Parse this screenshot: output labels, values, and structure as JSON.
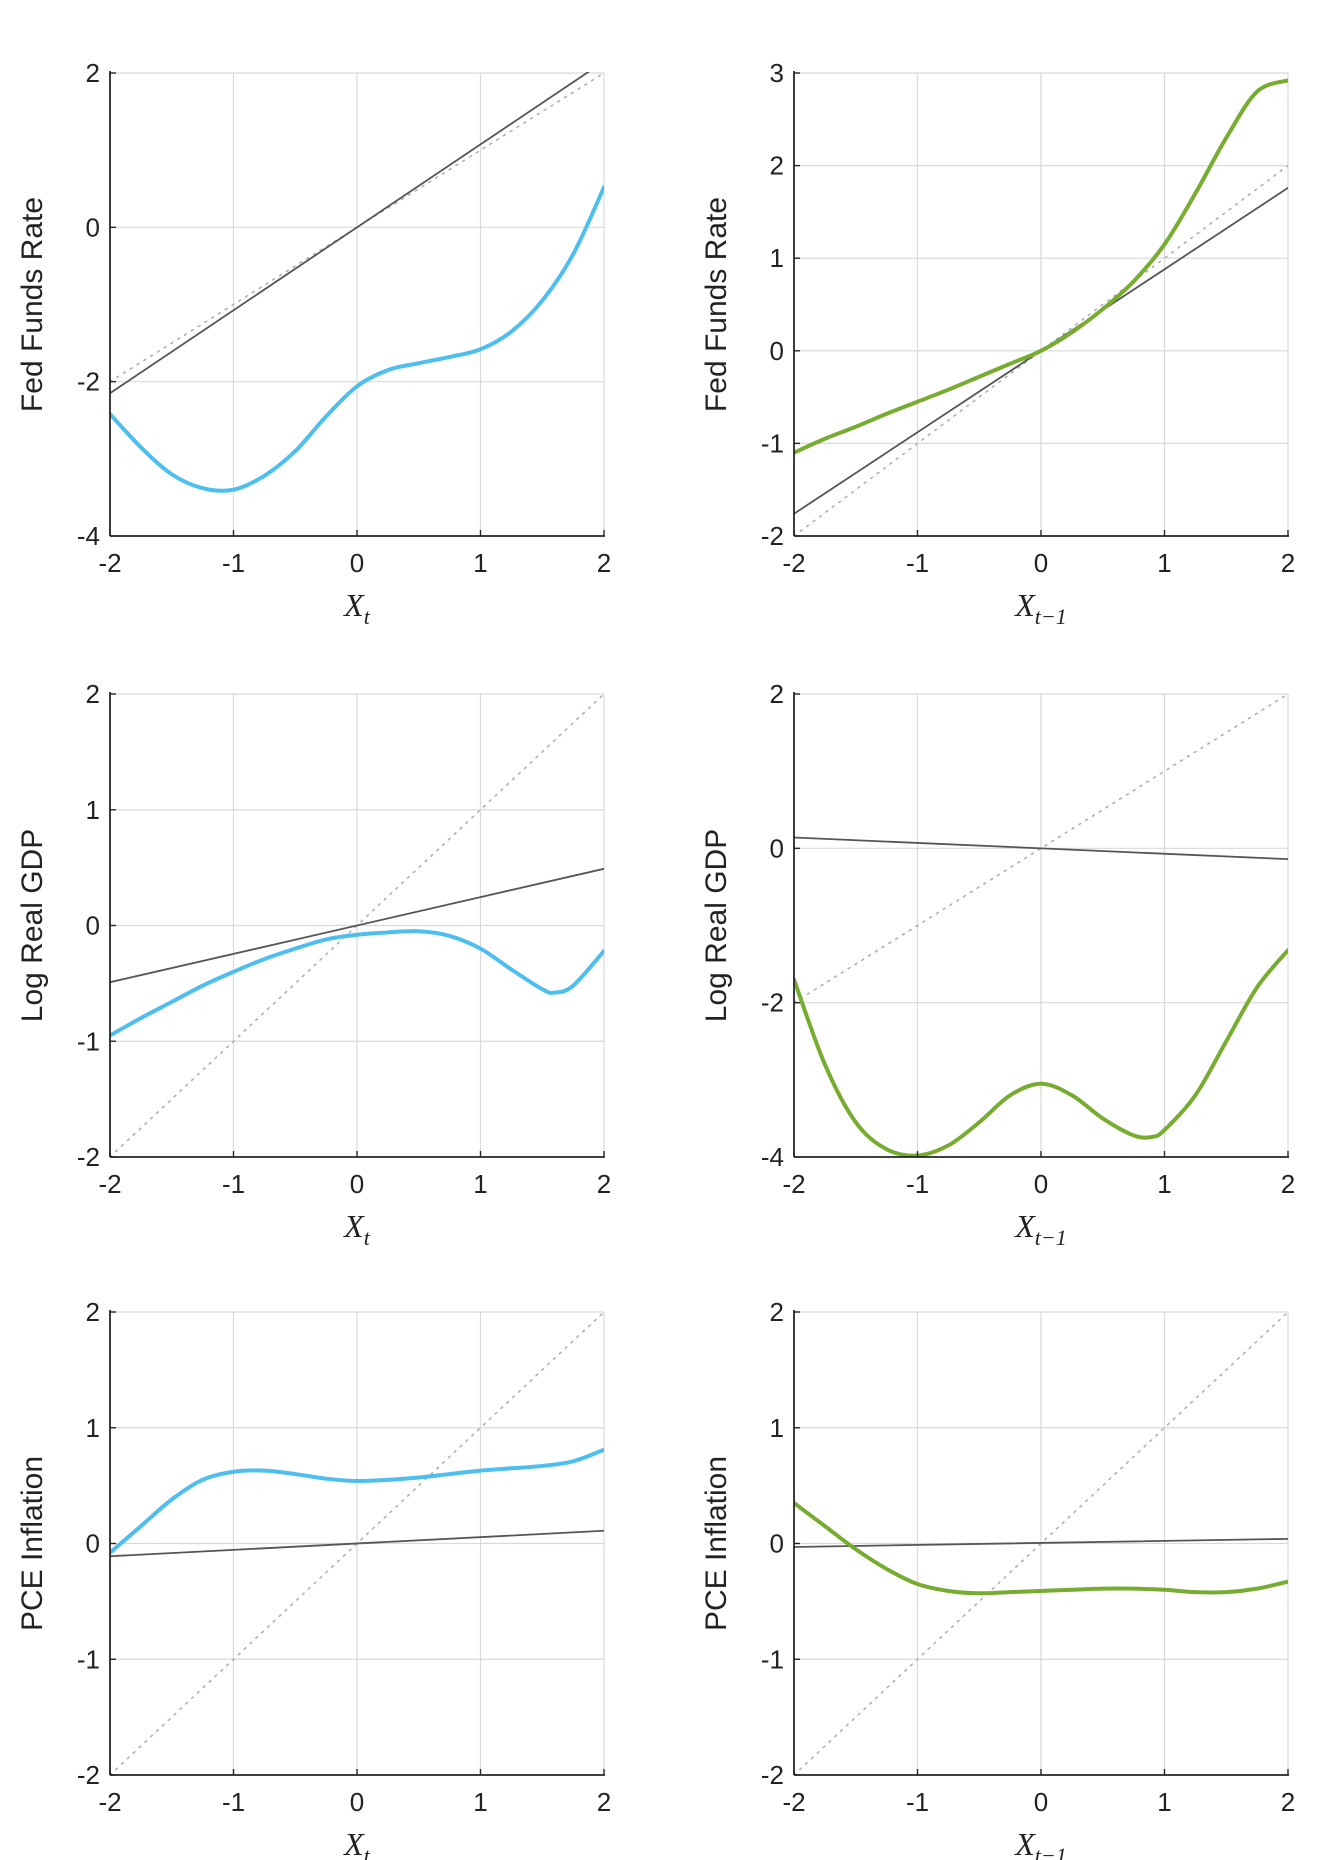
{
  "colors": {
    "blue": "#4DBEEE",
    "green": "#77AC30",
    "linear": "#555555",
    "identity": "#b0b0b0",
    "grid": "#d9d9d9",
    "axis": "#262626"
  },
  "chart_data": [
    {
      "type": "line",
      "panel": "row1-col1",
      "ylabel": "Fed Funds Rate",
      "xlabel": {
        "base": "X",
        "sub": "t"
      },
      "xlim": [
        -2,
        2
      ],
      "ylim": [
        -4,
        2
      ],
      "xticks": [
        -2,
        -1,
        0,
        1,
        2
      ],
      "yticks": [
        -4,
        -2,
        0,
        2
      ],
      "series": [
        {
          "name": "nonlinear",
          "color": "blue",
          "width": 4,
          "x": [
            -2,
            -1.75,
            -1.5,
            -1.25,
            -1,
            -0.75,
            -0.5,
            -0.25,
            0,
            0.25,
            0.5,
            0.75,
            1,
            1.25,
            1.5,
            1.75,
            2
          ],
          "y": [
            -2.42,
            -2.85,
            -3.2,
            -3.38,
            -3.4,
            -3.22,
            -2.9,
            -2.45,
            -2.06,
            -1.85,
            -1.76,
            -1.68,
            -1.58,
            -1.35,
            -0.95,
            -0.35,
            0.52
          ]
        },
        {
          "name": "linear",
          "color": "linear",
          "width": 1.8,
          "x": [
            -2,
            2
          ],
          "y": [
            -2.15,
            2.15
          ]
        },
        {
          "name": "identity",
          "color": "identity",
          "width": 1.6,
          "dash": true,
          "x": [
            -2,
            2
          ],
          "y": [
            -2,
            2
          ]
        }
      ]
    },
    {
      "type": "line",
      "panel": "row1-col2",
      "ylabel": "Fed Funds Rate",
      "xlabel": {
        "base": "X",
        "sub": "t−1"
      },
      "xlim": [
        -2,
        2
      ],
      "ylim": [
        -2,
        3
      ],
      "xticks": [
        -2,
        -1,
        0,
        1,
        2
      ],
      "yticks": [
        -2,
        -1,
        0,
        1,
        2,
        3
      ],
      "series": [
        {
          "name": "nonlinear",
          "color": "green",
          "width": 4,
          "x": [
            -2,
            -1.75,
            -1.5,
            -1.25,
            -1,
            -0.75,
            -0.5,
            -0.25,
            0,
            0.25,
            0.5,
            0.75,
            1,
            1.25,
            1.5,
            1.75,
            2
          ],
          "y": [
            -1.1,
            -0.95,
            -0.82,
            -0.68,
            -0.55,
            -0.42,
            -0.28,
            -0.14,
            0,
            0.2,
            0.45,
            0.75,
            1.15,
            1.7,
            2.3,
            2.8,
            2.92
          ]
        },
        {
          "name": "linear",
          "color": "linear",
          "width": 1.8,
          "x": [
            -2,
            2
          ],
          "y": [
            -1.76,
            1.76
          ]
        },
        {
          "name": "identity",
          "color": "identity",
          "width": 1.6,
          "dash": true,
          "x": [
            -2,
            2
          ],
          "y": [
            -2,
            2
          ]
        }
      ]
    },
    {
      "type": "line",
      "panel": "row2-col1",
      "ylabel": "Log Real GDP",
      "xlabel": {
        "base": "X",
        "sub": "t"
      },
      "xlim": [
        -2,
        2
      ],
      "ylim": [
        -2,
        2
      ],
      "xticks": [
        -2,
        -1,
        0,
        1,
        2
      ],
      "yticks": [
        -2,
        -1,
        0,
        1,
        2
      ],
      "series": [
        {
          "name": "nonlinear",
          "color": "blue",
          "width": 4,
          "x": [
            -2,
            -1.75,
            -1.5,
            -1.25,
            -1,
            -0.75,
            -0.5,
            -0.25,
            0,
            0.25,
            0.5,
            0.75,
            1,
            1.25,
            1.5,
            1.6,
            1.75,
            2
          ],
          "y": [
            -0.95,
            -0.8,
            -0.66,
            -0.52,
            -0.4,
            -0.29,
            -0.2,
            -0.12,
            -0.08,
            -0.06,
            -0.05,
            -0.09,
            -0.2,
            -0.38,
            -0.55,
            -0.58,
            -0.52,
            -0.22
          ]
        },
        {
          "name": "linear",
          "color": "linear",
          "width": 1.8,
          "x": [
            -2,
            2
          ],
          "y": [
            -0.49,
            0.49
          ]
        },
        {
          "name": "identity",
          "color": "identity",
          "width": 1.6,
          "dash": true,
          "x": [
            -2,
            2
          ],
          "y": [
            -2,
            2
          ]
        }
      ]
    },
    {
      "type": "line",
      "panel": "row2-col2",
      "ylabel": "Log Real GDP",
      "xlabel": {
        "base": "X",
        "sub": "t−1"
      },
      "xlim": [
        -2,
        2
      ],
      "ylim": [
        -4,
        2
      ],
      "xticks": [
        -2,
        -1,
        0,
        1,
        2
      ],
      "yticks": [
        -4,
        -2,
        0,
        2
      ],
      "series": [
        {
          "name": "nonlinear",
          "color": "green",
          "width": 4,
          "x": [
            -2,
            -1.75,
            -1.5,
            -1.25,
            -1,
            -0.75,
            -0.5,
            -0.25,
            0,
            0.25,
            0.5,
            0.75,
            0.9,
            1,
            1.25,
            1.5,
            1.75,
            2
          ],
          "y": [
            -1.7,
            -2.8,
            -3.55,
            -3.9,
            -3.98,
            -3.85,
            -3.55,
            -3.2,
            -3.05,
            -3.2,
            -3.5,
            -3.72,
            -3.74,
            -3.65,
            -3.2,
            -2.5,
            -1.8,
            -1.32
          ]
        },
        {
          "name": "linear",
          "color": "linear",
          "width": 1.8,
          "x": [
            -2,
            2
          ],
          "y": [
            0.14,
            -0.14
          ]
        },
        {
          "name": "identity",
          "color": "identity",
          "width": 1.6,
          "dash": true,
          "x": [
            -2,
            2
          ],
          "y": [
            -2,
            2
          ]
        }
      ]
    },
    {
      "type": "line",
      "panel": "row3-col1",
      "ylabel": "PCE Inflation",
      "xlabel": {
        "base": "X",
        "sub": "t"
      },
      "xlim": [
        -2,
        2
      ],
      "ylim": [
        -2,
        2
      ],
      "xticks": [
        -2,
        -1,
        0,
        1,
        2
      ],
      "yticks": [
        -2,
        -1,
        0,
        1,
        2
      ],
      "series": [
        {
          "name": "nonlinear",
          "color": "blue",
          "width": 4,
          "x": [
            -2,
            -1.75,
            -1.5,
            -1.25,
            -1,
            -0.75,
            -0.5,
            -0.25,
            0,
            0.25,
            0.5,
            0.75,
            1,
            1.25,
            1.5,
            1.75,
            2
          ],
          "y": [
            -0.08,
            0.15,
            0.38,
            0.55,
            0.62,
            0.63,
            0.6,
            0.56,
            0.54,
            0.55,
            0.57,
            0.6,
            0.63,
            0.65,
            0.67,
            0.71,
            0.81
          ]
        },
        {
          "name": "linear",
          "color": "linear",
          "width": 1.8,
          "x": [
            -2,
            2
          ],
          "y": [
            -0.11,
            0.11
          ]
        },
        {
          "name": "identity",
          "color": "identity",
          "width": 1.6,
          "dash": true,
          "x": [
            -2,
            2
          ],
          "y": [
            -2,
            2
          ]
        }
      ]
    },
    {
      "type": "line",
      "panel": "row3-col2",
      "ylabel": "PCE Inflation",
      "xlabel": {
        "base": "X",
        "sub": "t−1"
      },
      "xlim": [
        -2,
        2
      ],
      "ylim": [
        -2,
        2
      ],
      "xticks": [
        -2,
        -1,
        0,
        1,
        2
      ],
      "yticks": [
        -2,
        -1,
        0,
        1,
        2
      ],
      "series": [
        {
          "name": "nonlinear",
          "color": "green",
          "width": 4,
          "x": [
            -2,
            -1.75,
            -1.5,
            -1.25,
            -1,
            -0.75,
            -0.5,
            -0.25,
            0,
            0.25,
            0.5,
            0.75,
            1,
            1.25,
            1.5,
            1.75,
            2
          ],
          "y": [
            0.35,
            0.15,
            -0.05,
            -0.22,
            -0.35,
            -0.41,
            -0.43,
            -0.42,
            -0.41,
            -0.4,
            -0.39,
            -0.39,
            -0.4,
            -0.42,
            -0.42,
            -0.39,
            -0.33
          ]
        },
        {
          "name": "linear",
          "color": "linear",
          "width": 1.8,
          "x": [
            -2,
            2
          ],
          "y": [
            -0.03,
            0.04
          ]
        },
        {
          "name": "identity",
          "color": "identity",
          "width": 1.6,
          "dash": true,
          "x": [
            -2,
            2
          ],
          "y": [
            -2,
            2
          ]
        }
      ]
    }
  ]
}
